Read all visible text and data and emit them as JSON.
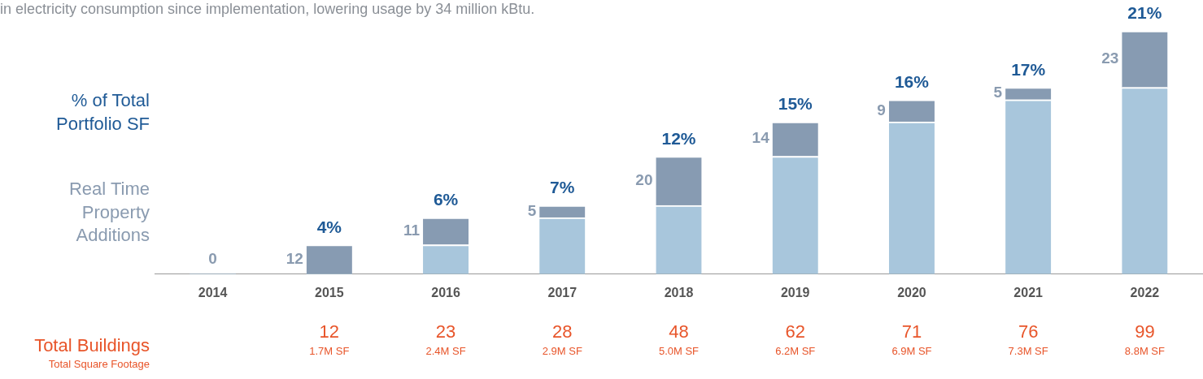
{
  "chart_data": {
    "type": "bar",
    "stacked": true,
    "tick_labels": "x",
    "categories": [
      "2014",
      "2015",
      "2016",
      "2017",
      "2018",
      "2019",
      "2020",
      "2021",
      "2022"
    ],
    "series": [
      {
        "color": "#a8c6dc",
        "values": [
          0,
          0,
          12,
          23,
          28,
          48,
          62,
          71,
          76
        ]
      },
      {
        "color": "#879bb2",
        "values": [
          0,
          12,
          11,
          5,
          20,
          14,
          9,
          5,
          23
        ],
        "value_labels": [
          "0",
          "12",
          "11",
          "5",
          "20",
          "14",
          "9",
          "5",
          "23"
        ]
      }
    ],
    "totals": [
      null,
      "12",
      "23",
      "28",
      "48",
      "62",
      "71",
      "76",
      "99"
    ],
    "annotations": [
      "in electricity consumption since implementation, lowering usage by 34 million kBtu.",
      "% of Total Portfolio SF",
      "Real Time Property Additions",
      "Total Buildings",
      "Total Square Footage",
      "1.7M SF",
      "2.4M SF",
      "2.9M SF",
      "5.0M SF",
      "6.2M SF",
      "6.9M SF",
      "7.3M SF",
      "8.8M SF",
      {
        "text": "4%",
        "x": "2015",
        "y": 12
      },
      {
        "text": "6%",
        "x": "2016",
        "y": 23
      },
      {
        "text": "7%",
        "x": "2017",
        "y": 28
      },
      {
        "text": "12%",
        "x": "2018",
        "y": 48
      },
      {
        "text": "15%",
        "x": "2019",
        "y": 62
      },
      {
        "text": "16%",
        "x": "2020",
        "y": 71
      },
      {
        "text": "17%",
        "x": "2021",
        "y": 76
      },
      {
        "text": "21%",
        "x": "2022",
        "y": 99
      }
    ]
  }
}
